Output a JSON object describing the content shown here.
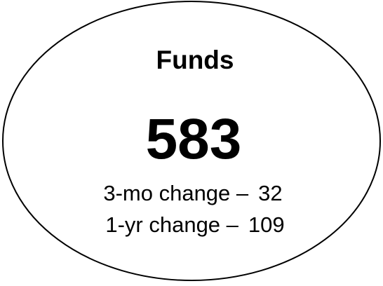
{
  "title": "Funds",
  "total": "583",
  "changes": [
    {
      "label": "3-mo change –",
      "value": "32"
    },
    {
      "label": "1-yr change –",
      "value": "109"
    }
  ]
}
